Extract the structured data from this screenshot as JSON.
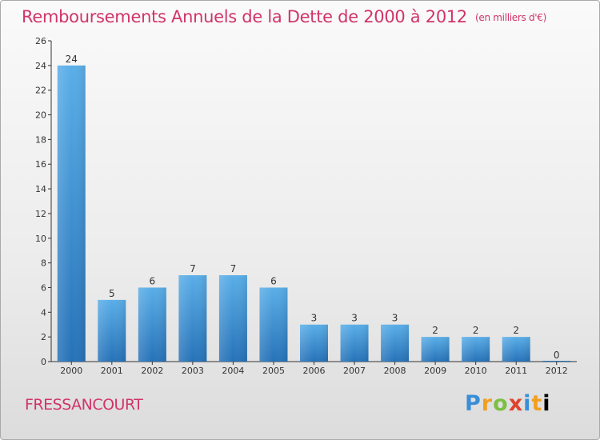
{
  "header": {
    "title": "Remboursements Annuels de la Dette de 2000 à 2012",
    "unit": "(en milliers d'€)"
  },
  "footer": {
    "commune": "FRESSANCOURT",
    "logo_letters": [
      "P",
      "r",
      "o",
      "x",
      "i",
      "t",
      "i"
    ]
  },
  "colors": {
    "title": "#d1346a",
    "bar_top": "#5aaee8",
    "bar_bottom": "#2672b8"
  },
  "chart_data": {
    "type": "bar",
    "title": "Remboursements Annuels de la Dette de 2000 à 2012",
    "xlabel": "",
    "ylabel": "",
    "categories": [
      "2000",
      "2001",
      "2002",
      "2003",
      "2004",
      "2005",
      "2006",
      "2007",
      "2008",
      "2009",
      "2010",
      "2011",
      "2012"
    ],
    "values": [
      24,
      5,
      6,
      7,
      7,
      6,
      3,
      3,
      3,
      2,
      2,
      2,
      0
    ],
    "ylim": [
      0,
      26
    ],
    "yticks": [
      0,
      2,
      4,
      6,
      8,
      10,
      12,
      14,
      16,
      18,
      20,
      22,
      24,
      26
    ],
    "grid": false,
    "legend": "none"
  }
}
